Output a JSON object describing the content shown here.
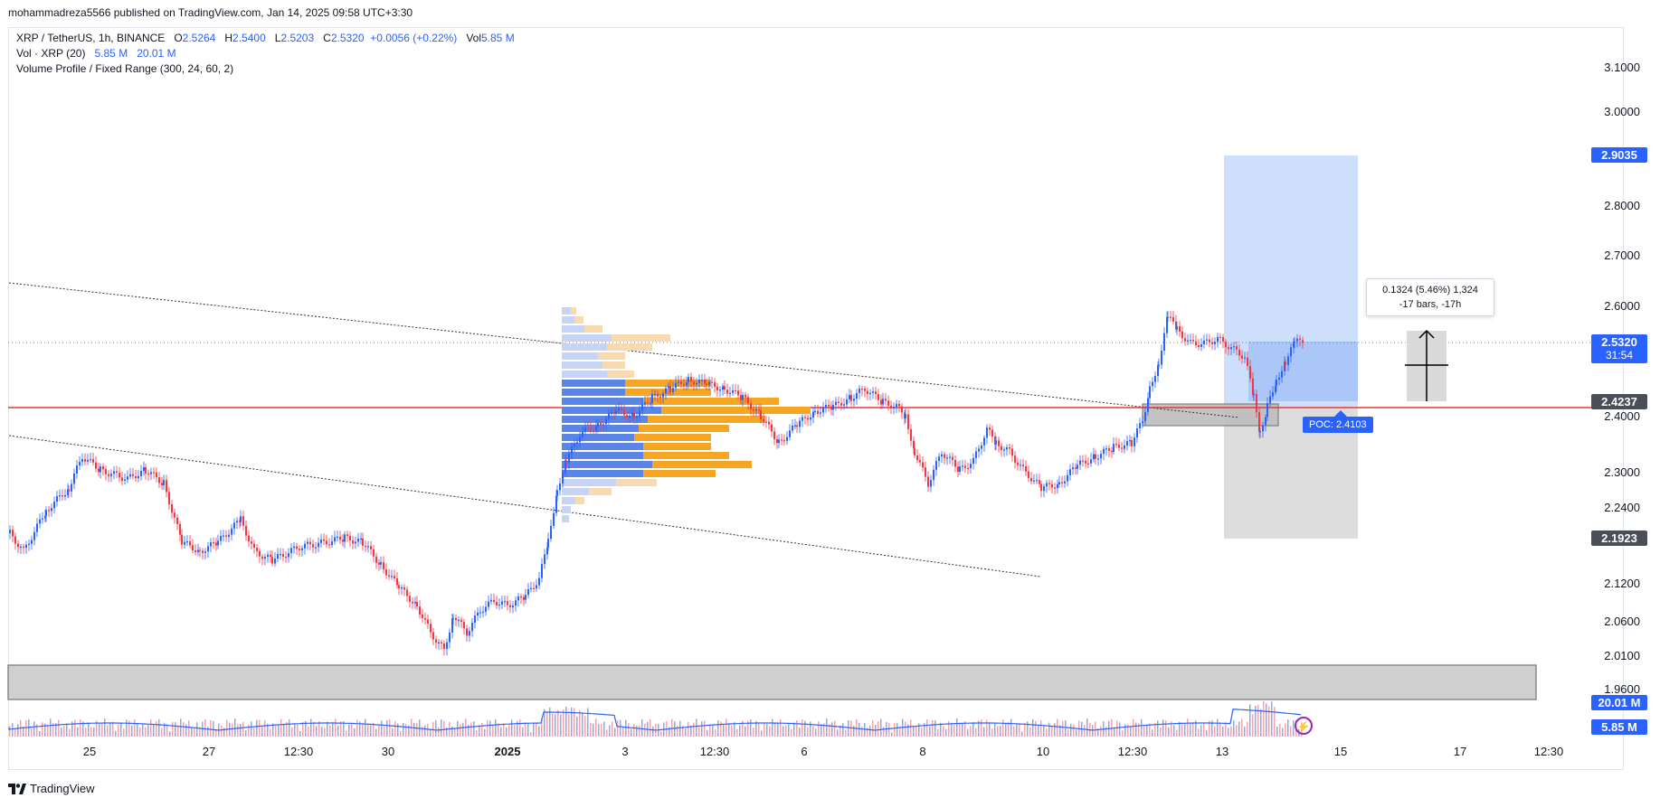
{
  "header": {
    "published": "mohammadreza5566 published on TradingView.com, Jan 14, 2025 09:58 UTC+3:30"
  },
  "legend": {
    "symbol": "XRP / TetherUS, 1h, BINANCE",
    "o_label": "O",
    "o_value": "2.5264",
    "h_label": "H",
    "h_value": "2.5400",
    "l_label": "L",
    "l_value": "2.5203",
    "c_label": "C",
    "c_value": "2.5320",
    "change": "+0.0056 (+0.22%)",
    "vol_label": "Vol",
    "vol_value": "5.85 M",
    "vol_ind": "Vol · XRP (20)",
    "vol_ind_v1": "5.85 M",
    "vol_ind_v2": "20.01 M",
    "vp": "Volume Profile / Fixed Range (300, 24, 60, 2)"
  },
  "yaxis": [
    "3.1000",
    "3.0000",
    "2.8000",
    "2.7000",
    "2.6000",
    "2.4000",
    "2.3000",
    "2.2400",
    "2.1200",
    "2.0600",
    "2.0100",
    "1.9600"
  ],
  "tags": {
    "target": "2.9035",
    "price": "2.5320",
    "countdown": "31:54",
    "entry": "2.4237",
    "stop": "2.1923",
    "vol_ma": "20.01 M",
    "vol_cur": "5.85 M"
  },
  "xaxis": [
    "25",
    "27",
    "12:30",
    "30",
    "2025",
    "3",
    "12:30",
    "6",
    "8",
    "10",
    "12:30",
    "13",
    "15",
    "17",
    "12:30"
  ],
  "tooltip": {
    "line1": "0.1324 (5.46%) 1,324",
    "line2": "-17 bars, -17h"
  },
  "poc": "POC: 2.4103",
  "footer": {
    "brand": "TradingView"
  },
  "colors": {
    "up": "#2962ff",
    "down": "#f23645",
    "accent": "#2962ff",
    "poc_line": "#e53935"
  },
  "icons": {
    "logo": "tradingview-logo-icon",
    "lightning": "lightning-icon"
  }
}
